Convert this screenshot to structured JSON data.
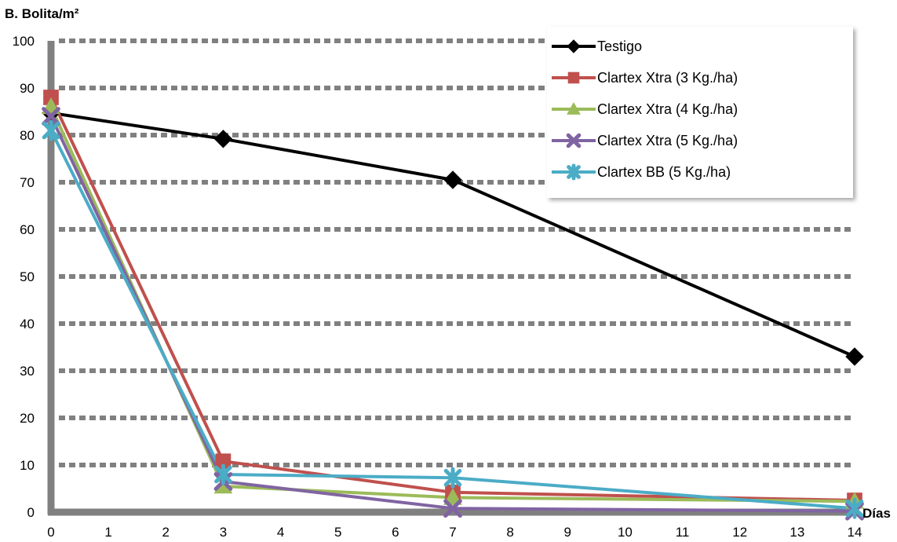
{
  "chart_data": {
    "type": "line",
    "ylabel": "B. Bolita/m²",
    "xlabel": "Días",
    "x_ticks": [
      0,
      1,
      2,
      3,
      4,
      5,
      6,
      7,
      8,
      9,
      10,
      11,
      12,
      13,
      14
    ],
    "y_ticks": [
      0,
      10,
      20,
      30,
      40,
      50,
      60,
      70,
      80,
      90,
      100
    ],
    "xlim": [
      0,
      14
    ],
    "ylim": [
      0,
      100
    ],
    "grid": true,
    "legend_position": "top-right",
    "x": [
      0,
      3,
      7,
      14
    ],
    "series": [
      {
        "name": "Testigo",
        "color": "#000000",
        "marker": "diamond",
        "values": [
          84.7,
          79.2,
          70.5,
          33.0
        ]
      },
      {
        "name": "Clartex Xtra (3 Kg./ha)",
        "color": "#C0504D",
        "marker": "square",
        "values": [
          88.0,
          10.8,
          4.2,
          2.5
        ]
      },
      {
        "name": "Clartex Xtra (4 Kg./ha)",
        "color": "#9BBB59",
        "marker": "triangle",
        "values": [
          86.0,
          5.5,
          3.1,
          2.3
        ]
      },
      {
        "name": "Clartex Xtra (5 Kg./ha)",
        "color": "#8064A2",
        "marker": "x",
        "values": [
          84.0,
          6.5,
          0.8,
          0.2
        ]
      },
      {
        "name": "Clartex BB (5 Kg./ha)",
        "color": "#4BACC6",
        "marker": "star",
        "values": [
          81.0,
          8.0,
          7.3,
          0.8
        ]
      }
    ]
  }
}
